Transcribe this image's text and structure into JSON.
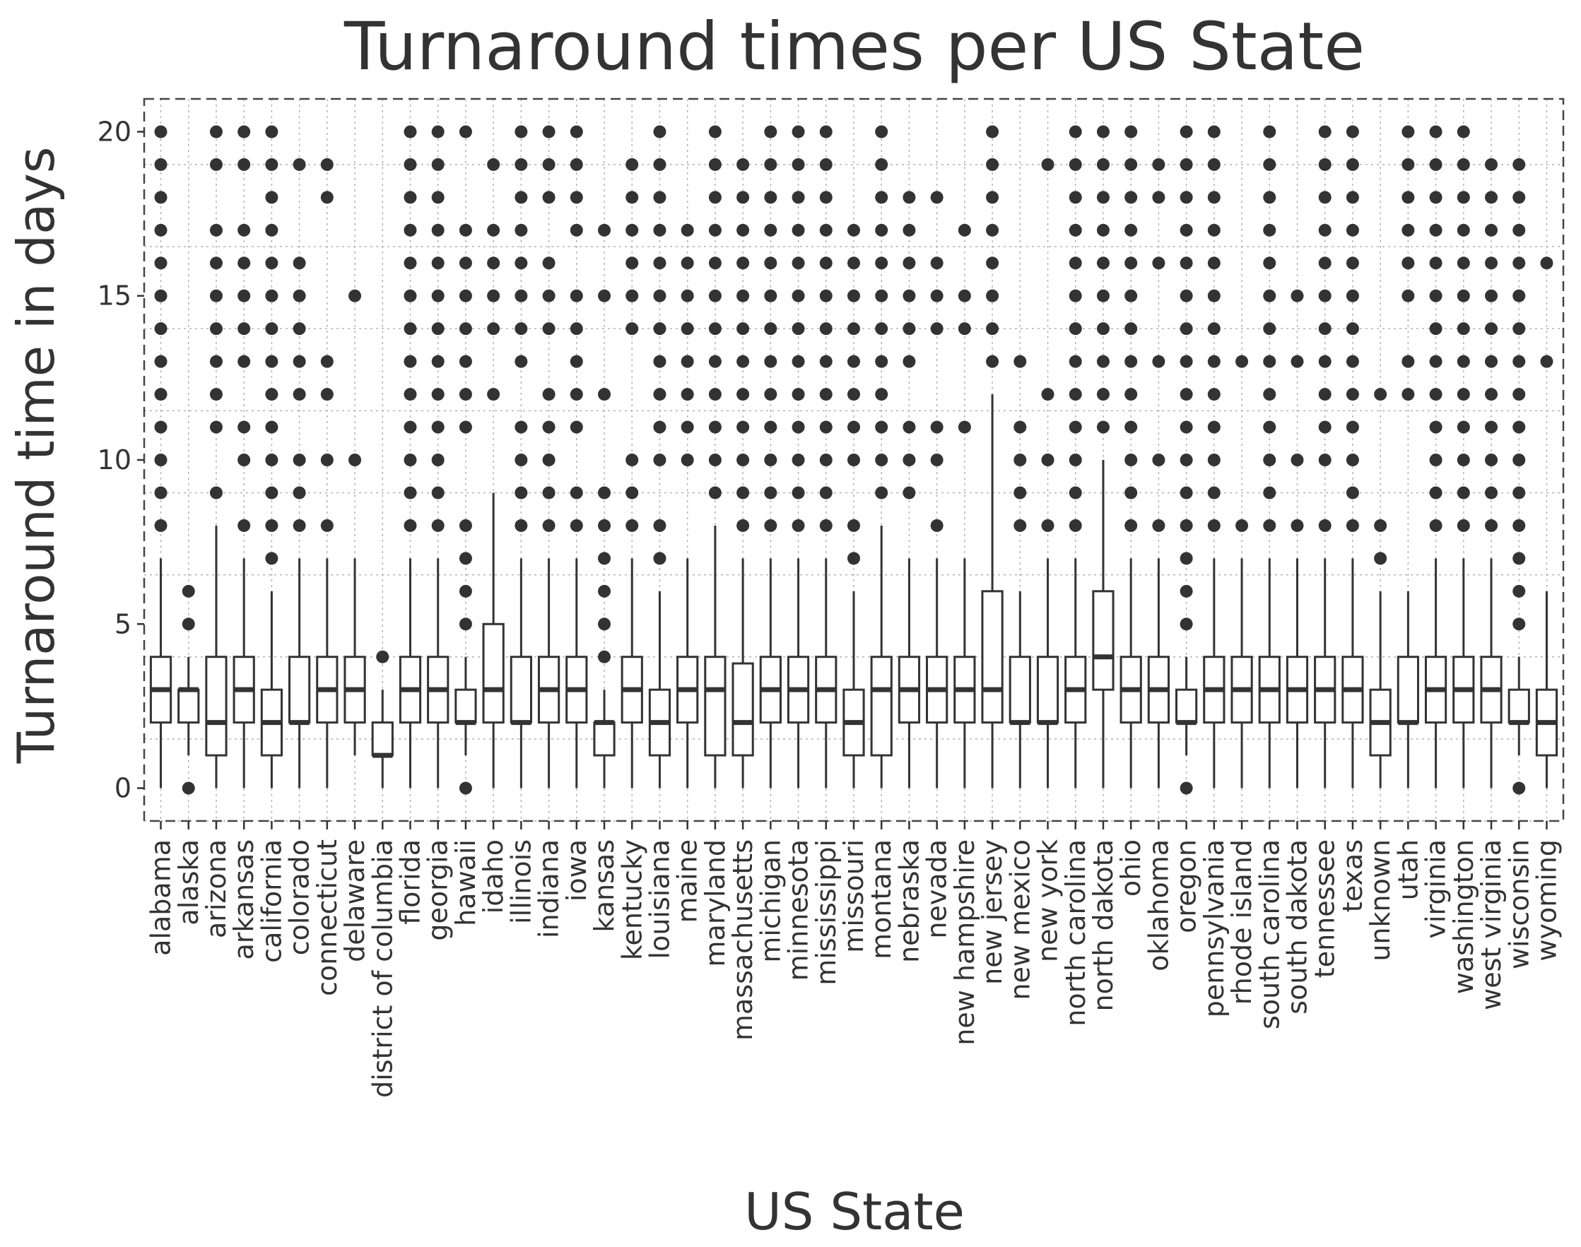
{
  "chart_data": {
    "type": "boxplot",
    "title": "Turnaround times per US State",
    "xlabel": "US State",
    "ylabel": "Turnaround time in days",
    "ylim": [
      -1,
      21
    ],
    "yticks": [
      0,
      5,
      10,
      15,
      20
    ],
    "grid": true,
    "categories": [
      {
        "name": "alabama",
        "q1": 2,
        "median": 3,
        "q3": 4,
        "low": 0,
        "high": 7,
        "outliers": [
          8,
          9,
          10,
          11,
          12,
          13,
          14,
          15,
          16,
          17,
          18,
          19,
          20
        ]
      },
      {
        "name": "alaska",
        "q1": 2,
        "median": 3,
        "q3": 3,
        "low": 1,
        "high": 4,
        "outliers": [
          0,
          5,
          6
        ]
      },
      {
        "name": "arizona",
        "q1": 1,
        "median": 2,
        "q3": 4,
        "low": 0,
        "high": 8,
        "outliers": [
          9,
          11,
          12,
          13,
          14,
          15,
          16,
          17,
          19,
          20
        ]
      },
      {
        "name": "arkansas",
        "q1": 2,
        "median": 3,
        "q3": 4,
        "low": 0,
        "high": 7,
        "outliers": [
          8,
          10,
          11,
          13,
          14,
          15,
          16,
          17,
          19,
          20
        ]
      },
      {
        "name": "california",
        "q1": 1,
        "median": 2,
        "q3": 3,
        "low": 0,
        "high": 6,
        "outliers": [
          7,
          8,
          9,
          10,
          11,
          12,
          13,
          14,
          15,
          16,
          17,
          18,
          19,
          20
        ]
      },
      {
        "name": "colorado",
        "q1": 2,
        "median": 2,
        "q3": 4,
        "low": 0,
        "high": 7,
        "outliers": [
          8,
          9,
          10,
          12,
          13,
          14,
          15,
          16,
          19
        ]
      },
      {
        "name": "connecticut",
        "q1": 2,
        "median": 3,
        "q3": 4,
        "low": 0,
        "high": 7,
        "outliers": [
          8,
          10,
          12,
          13,
          18,
          19
        ]
      },
      {
        "name": "delaware",
        "q1": 2,
        "median": 3,
        "q3": 4,
        "low": 1,
        "high": 7,
        "outliers": [
          10,
          15
        ]
      },
      {
        "name": "district of columbia",
        "q1": 1,
        "median": 1,
        "q3": 2,
        "low": 0,
        "high": 3,
        "outliers": [
          4
        ]
      },
      {
        "name": "florida",
        "q1": 2,
        "median": 3,
        "q3": 4,
        "low": 0,
        "high": 7,
        "outliers": [
          8,
          9,
          10,
          11,
          12,
          13,
          14,
          15,
          16,
          17,
          18,
          19,
          20
        ]
      },
      {
        "name": "georgia",
        "q1": 2,
        "median": 3,
        "q3": 4,
        "low": 0,
        "high": 7,
        "outliers": [
          8,
          9,
          10,
          11,
          12,
          13,
          14,
          15,
          16,
          17,
          18,
          19,
          20
        ]
      },
      {
        "name": "hawaii",
        "q1": 2,
        "median": 2,
        "q3": 3,
        "low": 1,
        "high": 4,
        "outliers": [
          0,
          5,
          6,
          7,
          8,
          11,
          12,
          13,
          14,
          15,
          16,
          17,
          20
        ]
      },
      {
        "name": "idaho",
        "q1": 2,
        "median": 3,
        "q3": 5,
        "low": 0,
        "high": 9,
        "outliers": [
          12,
          14,
          15,
          16,
          17,
          19
        ]
      },
      {
        "name": "illinois",
        "q1": 2,
        "median": 2,
        "q3": 4,
        "low": 0,
        "high": 7,
        "outliers": [
          8,
          9,
          10,
          11,
          13,
          14,
          15,
          16,
          17,
          18,
          19,
          20
        ]
      },
      {
        "name": "indiana",
        "q1": 2,
        "median": 3,
        "q3": 4,
        "low": 0,
        "high": 7,
        "outliers": [
          8,
          9,
          10,
          11,
          12,
          14,
          15,
          16,
          18,
          19,
          20
        ]
      },
      {
        "name": "iowa",
        "q1": 2,
        "median": 3,
        "q3": 4,
        "low": 0,
        "high": 7,
        "outliers": [
          8,
          9,
          11,
          12,
          13,
          14,
          15,
          17,
          18,
          19,
          20
        ]
      },
      {
        "name": "kansas",
        "q1": 1,
        "median": 2,
        "q3": 2,
        "low": 0,
        "high": 3,
        "outliers": [
          4,
          5,
          6,
          7,
          8,
          9,
          12,
          15,
          17
        ]
      },
      {
        "name": "kentucky",
        "q1": 2,
        "median": 3,
        "q3": 4,
        "low": 0,
        "high": 7,
        "outliers": [
          8,
          9,
          10,
          14,
          15,
          16,
          17,
          18,
          19
        ]
      },
      {
        "name": "louisiana",
        "q1": 1,
        "median": 2,
        "q3": 3,
        "low": 0,
        "high": 6,
        "outliers": [
          7,
          8,
          10,
          11,
          12,
          13,
          14,
          15,
          16,
          17,
          18,
          19,
          20
        ]
      },
      {
        "name": "maine",
        "q1": 2,
        "median": 3,
        "q3": 4,
        "low": 0,
        "high": 7,
        "outliers": [
          10,
          11,
          12,
          13,
          14,
          15,
          16,
          17
        ]
      },
      {
        "name": "maryland",
        "q1": 1,
        "median": 3,
        "q3": 4,
        "low": 0,
        "high": 8,
        "outliers": [
          9,
          10,
          11,
          12,
          13,
          14,
          15,
          16,
          17,
          18,
          19,
          20
        ]
      },
      {
        "name": "massachusetts",
        "q1": 1,
        "median": 2,
        "q3": 3.8,
        "low": 0,
        "high": 7,
        "outliers": [
          8,
          9,
          10,
          11,
          12,
          13,
          14,
          15,
          16,
          17,
          18,
          19
        ]
      },
      {
        "name": "michigan",
        "q1": 2,
        "median": 3,
        "q3": 4,
        "low": 0,
        "high": 7,
        "outliers": [
          8,
          9,
          10,
          11,
          12,
          13,
          14,
          15,
          16,
          17,
          18,
          19,
          20
        ]
      },
      {
        "name": "minnesota",
        "q1": 2,
        "median": 3,
        "q3": 4,
        "low": 0,
        "high": 7,
        "outliers": [
          8,
          9,
          10,
          11,
          12,
          13,
          14,
          15,
          16,
          17,
          18,
          19,
          20
        ]
      },
      {
        "name": "mississippi",
        "q1": 2,
        "median": 3,
        "q3": 4,
        "low": 0,
        "high": 7,
        "outliers": [
          8,
          9,
          10,
          11,
          12,
          13,
          14,
          15,
          16,
          17,
          18,
          19,
          20
        ]
      },
      {
        "name": "missouri",
        "q1": 1,
        "median": 2,
        "q3": 3,
        "low": 0,
        "high": 6,
        "outliers": [
          7,
          8,
          10,
          11,
          12,
          13,
          14,
          15,
          16,
          17
        ]
      },
      {
        "name": "montana",
        "q1": 1,
        "median": 3,
        "q3": 4,
        "low": 0,
        "high": 8,
        "outliers": [
          9,
          10,
          11,
          12,
          13,
          14,
          15,
          16,
          17,
          18,
          19,
          20
        ]
      },
      {
        "name": "nebraska",
        "q1": 2,
        "median": 3,
        "q3": 4,
        "low": 0,
        "high": 7,
        "outliers": [
          9,
          10,
          11,
          13,
          14,
          15,
          16,
          17,
          18
        ]
      },
      {
        "name": "nevada",
        "q1": 2,
        "median": 3,
        "q3": 4,
        "low": 0,
        "high": 7,
        "outliers": [
          8,
          10,
          11,
          14,
          15,
          16,
          18
        ]
      },
      {
        "name": "new hampshire",
        "q1": 2,
        "median": 3,
        "q3": 4,
        "low": 0,
        "high": 7,
        "outliers": [
          11,
          14,
          15,
          17
        ]
      },
      {
        "name": "new jersey",
        "q1": 2,
        "median": 3,
        "q3": 6,
        "low": 0,
        "high": 12,
        "outliers": [
          13,
          14,
          15,
          16,
          17,
          18,
          19,
          20
        ]
      },
      {
        "name": "new mexico",
        "q1": 2,
        "median": 2,
        "q3": 4,
        "low": 0,
        "high": 6,
        "outliers": [
          8,
          9,
          10,
          11,
          13
        ]
      },
      {
        "name": "new york",
        "q1": 2,
        "median": 2,
        "q3": 4,
        "low": 0,
        "high": 7,
        "outliers": [
          8,
          10,
          12,
          19
        ]
      },
      {
        "name": "north carolina",
        "q1": 2,
        "median": 3,
        "q3": 4,
        "low": 0,
        "high": 7,
        "outliers": [
          8,
          9,
          10,
          11,
          12,
          13,
          14,
          15,
          16,
          17,
          18,
          19,
          20
        ]
      },
      {
        "name": "north dakota",
        "q1": 3,
        "median": 4,
        "q3": 6,
        "low": 0,
        "high": 10,
        "outliers": [
          11,
          12,
          13,
          14,
          15,
          16,
          17,
          18,
          19,
          20
        ]
      },
      {
        "name": "ohio",
        "q1": 2,
        "median": 3,
        "q3": 4,
        "low": 0,
        "high": 7,
        "outliers": [
          8,
          9,
          10,
          11,
          12,
          13,
          14,
          15,
          16,
          17,
          18,
          19,
          20
        ]
      },
      {
        "name": "oklahoma",
        "q1": 2,
        "median": 3,
        "q3": 4,
        "low": 0,
        "high": 7,
        "outliers": [
          8,
          10,
          13,
          16,
          18,
          19
        ]
      },
      {
        "name": "oregon",
        "q1": 2,
        "median": 2,
        "q3": 3,
        "low": 1,
        "high": 4,
        "outliers": [
          0,
          5,
          6,
          7,
          8,
          9,
          10,
          11,
          12,
          13,
          14,
          15,
          16,
          17,
          18,
          19,
          20
        ]
      },
      {
        "name": "pennsylvania",
        "q1": 2,
        "median": 3,
        "q3": 4,
        "low": 0,
        "high": 7,
        "outliers": [
          8,
          9,
          10,
          11,
          12,
          13,
          14,
          15,
          16,
          17,
          18,
          19,
          20
        ]
      },
      {
        "name": "rhode island",
        "q1": 2,
        "median": 3,
        "q3": 4,
        "low": 0,
        "high": 7,
        "outliers": [
          8,
          13
        ]
      },
      {
        "name": "south carolina",
        "q1": 2,
        "median": 3,
        "q3": 4,
        "low": 0,
        "high": 7,
        "outliers": [
          8,
          9,
          10,
          11,
          12,
          13,
          14,
          15,
          16,
          17,
          18,
          19,
          20
        ]
      },
      {
        "name": "south dakota",
        "q1": 2,
        "median": 3,
        "q3": 4,
        "low": 0,
        "high": 7,
        "outliers": [
          8,
          10,
          13,
          15
        ]
      },
      {
        "name": "tennessee",
        "q1": 2,
        "median": 3,
        "q3": 4,
        "low": 0,
        "high": 7,
        "outliers": [
          8,
          10,
          11,
          12,
          13,
          14,
          15,
          16,
          17,
          18,
          19,
          20
        ]
      },
      {
        "name": "texas",
        "q1": 2,
        "median": 3,
        "q3": 4,
        "low": 0,
        "high": 7,
        "outliers": [
          8,
          9,
          10,
          11,
          12,
          13,
          14,
          15,
          16,
          17,
          18,
          19,
          20
        ]
      },
      {
        "name": "unknown",
        "q1": 1,
        "median": 2,
        "q3": 3,
        "low": 0,
        "high": 6,
        "outliers": [
          7,
          8,
          12
        ]
      },
      {
        "name": "utah",
        "q1": 2,
        "median": 2,
        "q3": 4,
        "low": 0,
        "high": 6,
        "outliers": [
          12,
          13,
          15,
          16,
          17,
          18,
          19,
          20
        ]
      },
      {
        "name": "virginia",
        "q1": 2,
        "median": 3,
        "q3": 4,
        "low": 0,
        "high": 7,
        "outliers": [
          8,
          9,
          10,
          11,
          12,
          13,
          14,
          15,
          16,
          17,
          18,
          19,
          20
        ]
      },
      {
        "name": "washington",
        "q1": 2,
        "median": 3,
        "q3": 4,
        "low": 0,
        "high": 7,
        "outliers": [
          8,
          9,
          10,
          11,
          12,
          13,
          14,
          15,
          16,
          17,
          18,
          19,
          20
        ]
      },
      {
        "name": "west virginia",
        "q1": 2,
        "median": 3,
        "q3": 4,
        "low": 0,
        "high": 7,
        "outliers": [
          8,
          9,
          10,
          11,
          12,
          13,
          14,
          15,
          16,
          17,
          18,
          19
        ]
      },
      {
        "name": "wisconsin",
        "q1": 2,
        "median": 2,
        "q3": 3,
        "low": 1,
        "high": 4,
        "outliers": [
          0,
          5,
          6,
          7,
          8,
          9,
          10,
          11,
          12,
          13,
          14,
          15,
          16,
          17,
          18,
          19
        ]
      },
      {
        "name": "wyoming",
        "q1": 1,
        "median": 2,
        "q3": 3,
        "low": 0,
        "high": 6,
        "outliers": [
          13,
          16
        ]
      }
    ]
  }
}
